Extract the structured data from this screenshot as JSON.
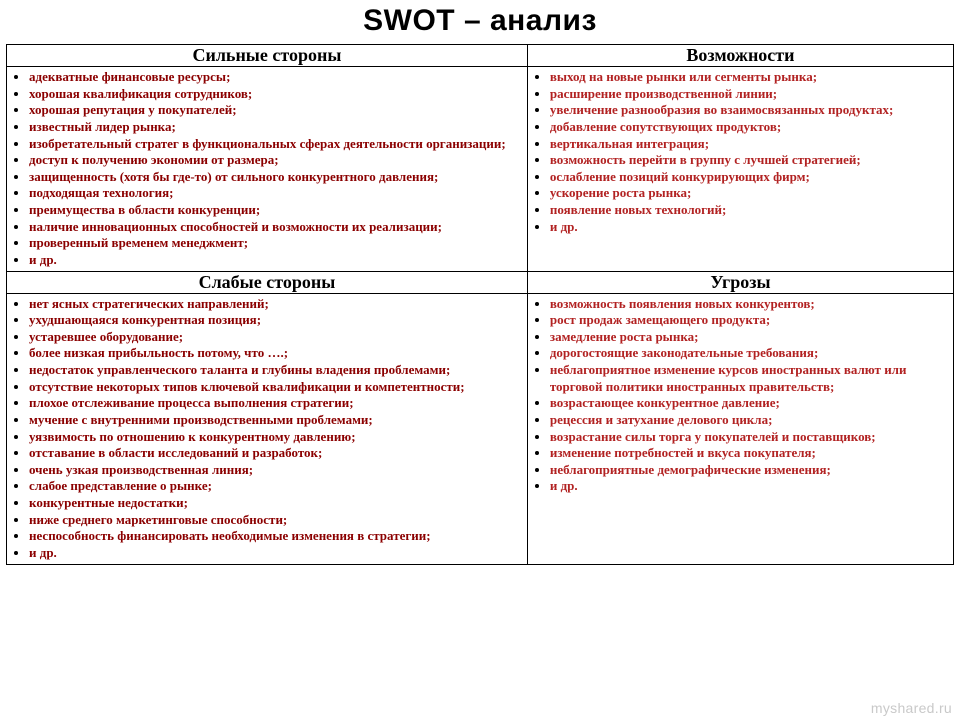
{
  "title": "SWOT – анализ",
  "watermark": "myshared.ru",
  "colors": {
    "left_text": "#8b0000",
    "right_text": "#b22222",
    "border": "#000000",
    "background": "#ffffff"
  },
  "quadrants": {
    "strengths": {
      "header": "Сильные стороны",
      "items": [
        "адекватные финансовые ресурсы;",
        "хорошая квалификация сотрудников;",
        "хорошая репутация у покупателей;",
        "известный лидер рынка;",
        "изобретательный стратег в функциональных сферах деятельности организации;",
        "доступ к получению экономии от размера;",
        "защищенность (хотя бы где-то) от сильного конкурентного давления;",
        "подходящая технология;",
        "преимущества в области конкуренции;",
        "наличие инновационных способностей и возможности их реализации;",
        "проверенный временем менеджмент;",
        "и др."
      ]
    },
    "opportunities": {
      "header": "Возможности",
      "items": [
        "выход на новые рынки или сегменты рынка;",
        "расширение производственной линии;",
        "увеличение разнообразия во взаимосвязанных продуктах;",
        "добавление сопутствующих продуктов;",
        "вертикальная интеграция;",
        "возможность перейти в группу с лучшей стратегией;",
        "ослабление позиций конкурирующих фирм;",
        "ускорение роста рынка;",
        "появление новых технологий;",
        "и др."
      ]
    },
    "weaknesses": {
      "header": "Слабые стороны",
      "items": [
        "нет ясных стратегических направлений;",
        "ухудшающаяся конкурентная позиция;",
        "устаревшее оборудование;",
        "более низкая прибыльность потому, что ….;",
        "недостаток управленческого таланта и глубины владения проблемами;",
        "отсутствие некоторых типов ключевой квалификации и компетентности;",
        "плохое отслеживание процесса выполнения стратегии;",
        "мучение с внутренними производственными проблемами;",
        "уязвимость по отношению к конкурентному давлению;",
        "отставание в области исследований и разработок;",
        "очень узкая производственная линия;",
        "слабое представление о рынке;",
        "конкурентные недостатки;",
        "ниже среднего маркетинговые способности;",
        "неспособность финансировать необходимые изменения в стратегии;",
        "и др."
      ]
    },
    "threats": {
      "header": "Угрозы",
      "items": [
        "возможность появления новых конкурентов;",
        "рост продаж замещающего продукта;",
        "замедление роста рынка;",
        "дорогостоящие законодательные требования;",
        "неблагоприятное изменение курсов иностранных валют или торговой политики иностранных правительств;",
        "возрастающее конкурентное давление;",
        "рецессия и затухание делового цикла;",
        "возрастание силы торга у покупателей и поставщиков;",
        "изменение потребностей и вкуса покупателя;",
        "неблагоприятные демографические изменения;",
        "и др."
      ]
    }
  }
}
